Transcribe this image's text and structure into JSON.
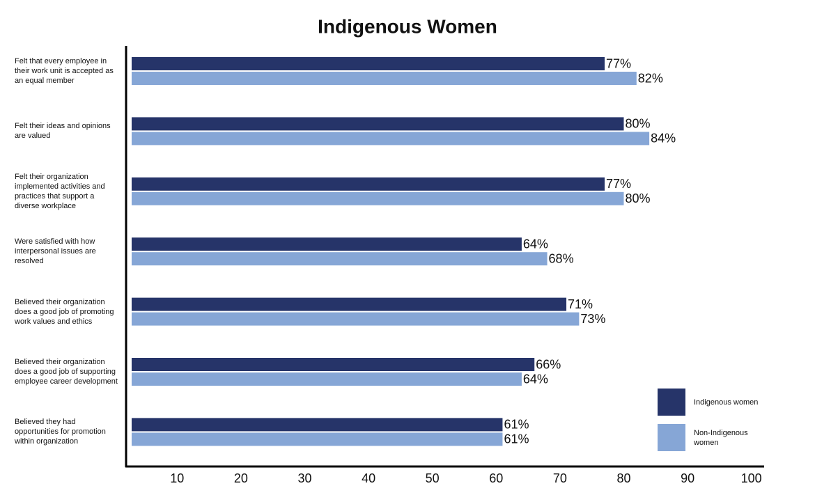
{
  "chart_data": {
    "type": "hbar",
    "title": "Indigenous Women",
    "categories": [
      "Felt that every employee in their work unit is accepted as an equal member",
      "Felt their ideas and opinions are valued",
      "Felt their organization implemented activities and practices that support a diverse workplace",
      "Were satisfied with how interpersonal issues are resolved",
      "Believed their organization does a good job of promoting work values and ethics",
      "Believed their organization does a good job of supporting employee career development",
      "Believed they had opportunities for promotion within organization"
    ],
    "series": [
      {
        "name": "Indigenous women",
        "color": "#263469",
        "values": [
          77,
          80,
          77,
          64,
          71,
          66,
          61
        ],
        "value_labels": [
          "77%",
          "80%",
          "77%",
          "64%",
          "71%",
          "66%",
          "61%"
        ]
      },
      {
        "name": "Non-Indigenous women",
        "color": "#86a6d6",
        "values": [
          82,
          84,
          80,
          68,
          73,
          64,
          61
        ],
        "value_labels": [
          "82%",
          "84%",
          "80%",
          "68%",
          "73%",
          "64%",
          "61%"
        ]
      }
    ],
    "xlim": [
      2,
      102
    ],
    "xticks": [
      10,
      20,
      30,
      40,
      50,
      60,
      70,
      80,
      90,
      100
    ],
    "grid": false,
    "legend": "lower right"
  }
}
